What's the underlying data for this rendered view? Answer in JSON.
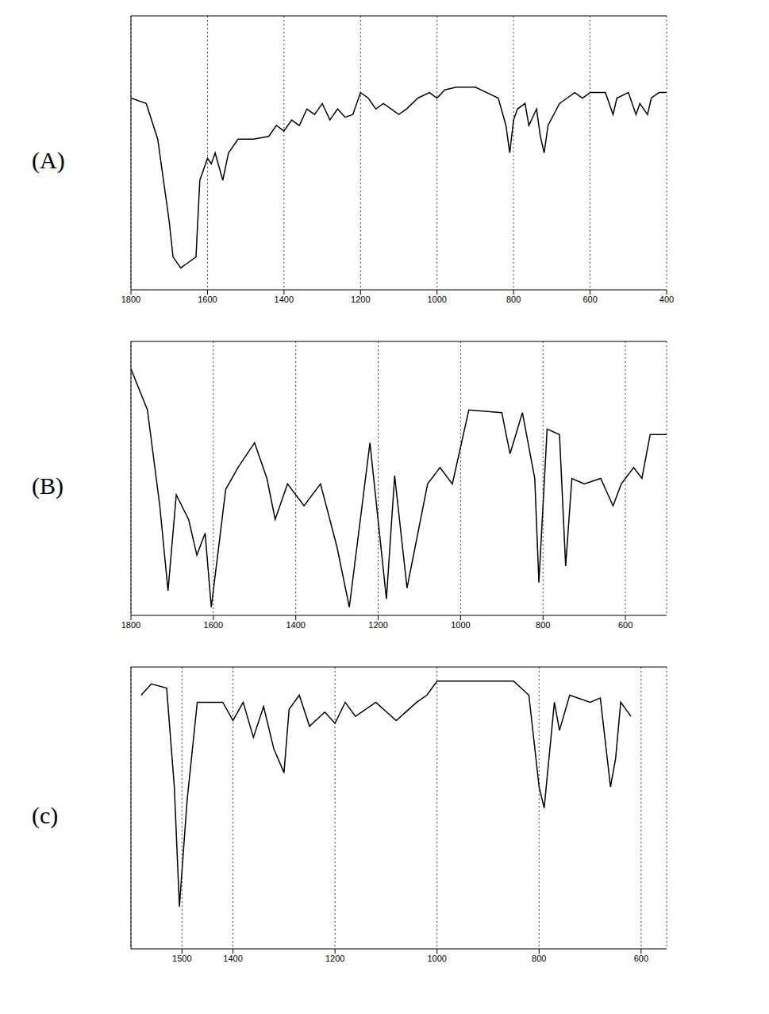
{
  "chart_data": [
    {
      "type": "line",
      "label": "(A)",
      "color": "#000000",
      "grid": true,
      "tick_labels": "x",
      "xlim": [
        1800,
        400
      ],
      "xticks": [
        1800,
        1600,
        1400,
        1200,
        1000,
        800,
        600,
        400
      ],
      "ylim": [
        0,
        100
      ],
      "x": [
        1800,
        1760,
        1730,
        1700,
        1690,
        1670,
        1650,
        1630,
        1620,
        1600,
        1590,
        1580,
        1560,
        1545,
        1520,
        1480,
        1440,
        1420,
        1400,
        1380,
        1360,
        1340,
        1320,
        1300,
        1280,
        1260,
        1240,
        1220,
        1200,
        1180,
        1160,
        1140,
        1100,
        1080,
        1050,
        1020,
        1000,
        980,
        950,
        900,
        870,
        840,
        820,
        810,
        800,
        790,
        770,
        760,
        740,
        730,
        720,
        710,
        680,
        660,
        640,
        620,
        600,
        560,
        540,
        530,
        500,
        480,
        470,
        450,
        440,
        420,
        400
      ],
      "values": [
        70,
        68,
        55,
        25,
        12,
        8,
        10,
        12,
        40,
        48,
        46,
        50,
        40,
        50,
        55,
        55,
        56,
        60,
        58,
        62,
        60,
        66,
        64,
        68,
        62,
        66,
        63,
        64,
        72,
        70,
        66,
        68,
        64,
        66,
        70,
        72,
        70,
        73,
        74,
        74,
        72,
        70,
        60,
        50,
        62,
        66,
        68,
        60,
        66,
        56,
        50,
        60,
        68,
        70,
        72,
        70,
        72,
        72,
        64,
        70,
        72,
        64,
        68,
        64,
        70,
        72,
        72
      ]
    },
    {
      "type": "line",
      "label": "(B)",
      "color": "#000000",
      "grid": true,
      "tick_labels": "x",
      "xlim": [
        1800,
        500
      ],
      "xticks": [
        1800,
        1600,
        1400,
        1200,
        1000,
        800,
        600
      ],
      "ylim": [
        0,
        100
      ],
      "x": [
        1800,
        1760,
        1730,
        1710,
        1690,
        1660,
        1640,
        1620,
        1605,
        1570,
        1540,
        1500,
        1470,
        1450,
        1420,
        1380,
        1340,
        1300,
        1270,
        1220,
        1180,
        1160,
        1130,
        1080,
        1050,
        1020,
        980,
        900,
        880,
        850,
        820,
        810,
        790,
        760,
        745,
        730,
        700,
        660,
        630,
        610,
        580,
        560,
        540,
        520,
        500
      ],
      "values": [
        90,
        75,
        40,
        9,
        44,
        35,
        22,
        30,
        3,
        46,
        54,
        63,
        50,
        35,
        48,
        40,
        48,
        25,
        3,
        63,
        6,
        51,
        10,
        48,
        54,
        48,
        75,
        74,
        59,
        74,
        50,
        12,
        68,
        66,
        18,
        50,
        48,
        50,
        40,
        48,
        54,
        50,
        66,
        66,
        66
      ]
    },
    {
      "type": "line",
      "label": "(c)",
      "color": "#000000",
      "grid": true,
      "tick_labels": "x",
      "xlim": [
        1600,
        550
      ],
      "xticks": [
        1500,
        1400,
        1200,
        1000,
        800,
        600
      ],
      "ylim": [
        0,
        100
      ],
      "x": [
        1580,
        1560,
        1530,
        1515,
        1505,
        1490,
        1470,
        1420,
        1400,
        1380,
        1360,
        1340,
        1320,
        1300,
        1290,
        1270,
        1250,
        1220,
        1200,
        1180,
        1160,
        1120,
        1080,
        1040,
        1020,
        1000,
        960,
        900,
        850,
        820,
        800,
        790,
        770,
        760,
        740,
        700,
        680,
        660,
        650,
        640,
        620
      ],
      "values": [
        90,
        94,
        92.5,
        57.5,
        15,
        52.5,
        87.5,
        87.5,
        81,
        87.5,
        75,
        86,
        71,
        62.5,
        85,
        90,
        79,
        84,
        80,
        87.5,
        82.5,
        87.5,
        81,
        87.5,
        90,
        95,
        95,
        95,
        95,
        90,
        57.5,
        50,
        87.5,
        77.5,
        90,
        87.5,
        89,
        57.5,
        67.5,
        87.5,
        82.5
      ]
    }
  ]
}
